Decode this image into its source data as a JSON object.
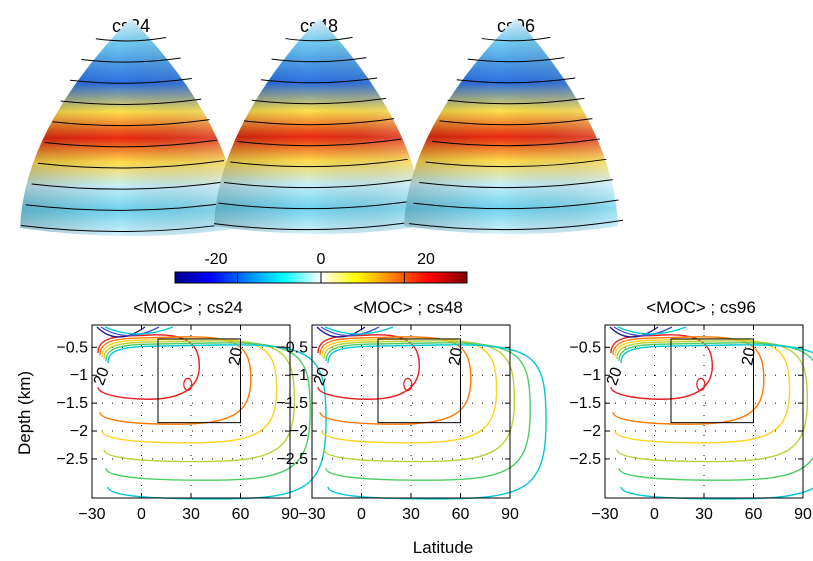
{
  "top_maps": {
    "titles": [
      "cs24",
      "cs48",
      "cs96"
    ]
  },
  "colorbar": {
    "ticks": [
      "-20",
      "0",
      "20"
    ],
    "values": [
      -20,
      0,
      20
    ],
    "range": [
      -35,
      35
    ],
    "colormap": "jet"
  },
  "axes_shared": {
    "ylabel": "Depth (km)",
    "xlabel": "Latitude",
    "xticks": [
      "−30",
      "0",
      "30",
      "60",
      "90"
    ],
    "xtick_values": [
      -30,
      0,
      30,
      60,
      90
    ],
    "yticks": [
      "−0.5",
      "−1",
      "−1.5",
      "−2",
      "−2.5"
    ],
    "ytick_values": [
      -0.5,
      -1,
      -1.5,
      -2,
      -2.5
    ],
    "xlim": [
      -30,
      90
    ],
    "ylim": [
      -3.2,
      -0.1
    ],
    "grid": "dotted",
    "contour_label": "20"
  },
  "chart_data": [
    {
      "type": "contour",
      "title": "<MOC> ; cs24",
      "xlabel": "Latitude",
      "ylabel": "Depth (km)",
      "box": {
        "lat": [
          10,
          60
        ],
        "depth": [
          -0.35,
          -1.85
        ]
      },
      "contour_levels": [
        -10,
        -5,
        0,
        5,
        10,
        15,
        20,
        25
      ],
      "contour_colors": [
        "#1a1a8c",
        "#3c50d2",
        "#00c8d2",
        "#4ccc66",
        "#b8d23c",
        "#ffd21e",
        "#ff7800",
        "#e61e1e"
      ]
    },
    {
      "type": "contour",
      "title": "<MOC> ; cs48",
      "xlabel": "Latitude",
      "ylabel": "Depth (km)",
      "box": {
        "lat": [
          10,
          60
        ],
        "depth": [
          -0.35,
          -1.85
        ]
      },
      "contour_levels": [
        -10,
        -5,
        0,
        5,
        10,
        15,
        20,
        25
      ],
      "contour_colors": [
        "#1a1a8c",
        "#3c50d2",
        "#00c8d2",
        "#4ccc66",
        "#b8d23c",
        "#ffd21e",
        "#ff7800",
        "#e61e1e"
      ]
    },
    {
      "type": "contour",
      "title": "<MOC> ; cs96",
      "xlabel": "Latitude",
      "ylabel": "Depth (km)",
      "box": {
        "lat": [
          10,
          60
        ],
        "depth": [
          -0.35,
          -1.85
        ]
      },
      "contour_levels": [
        -10,
        -5,
        0,
        5,
        10,
        15,
        20,
        25
      ],
      "contour_colors": [
        "#1a1a8c",
        "#3c50d2",
        "#00c8d2",
        "#4ccc66",
        "#b8d23c",
        "#ffd21e",
        "#ff7800",
        "#e61e1e"
      ]
    }
  ]
}
